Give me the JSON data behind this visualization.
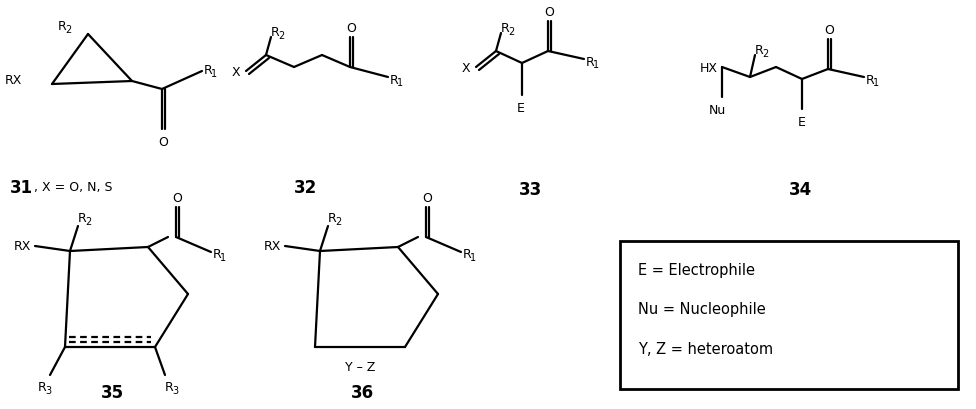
{
  "background": "#ffffff",
  "text_color": "#000000",
  "fig_width": 9.76,
  "fig_height": 4.1,
  "dpi": 100,
  "legend_text": [
    "E = Electrophile",
    "Nu = Nucleophile",
    "Y, Z = heteroatom"
  ]
}
